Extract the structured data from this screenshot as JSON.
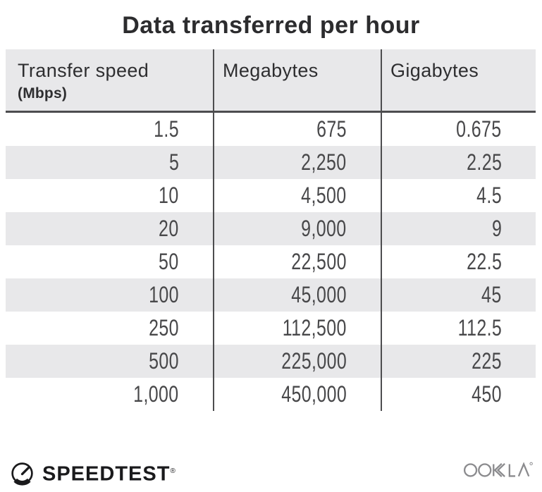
{
  "title": "Data transferred per hour",
  "table": {
    "columns": [
      {
        "label": "Transfer speed",
        "sublabel": "(Mbps)"
      },
      {
        "label": "Megabytes"
      },
      {
        "label": "Gigabytes"
      }
    ],
    "rows": [
      [
        "1.5",
        "675",
        "0.675"
      ],
      [
        "5",
        "2,250",
        "2.25"
      ],
      [
        "10",
        "4,500",
        "4.5"
      ],
      [
        "20",
        "9,000",
        "9"
      ],
      [
        "50",
        "22,500",
        "22.5"
      ],
      [
        "100",
        "45,000",
        "45"
      ],
      [
        "250",
        "112,500",
        "112.5"
      ],
      [
        "500",
        "225,000",
        "225"
      ],
      [
        "1,000",
        "450,000",
        "450"
      ]
    ]
  },
  "chart_data": {
    "type": "table",
    "title": "Data transferred per hour",
    "columns": [
      "Transfer speed (Mbps)",
      "Megabytes",
      "Gigabytes"
    ],
    "rows": [
      [
        1.5,
        675,
        0.675
      ],
      [
        5,
        2250,
        2.25
      ],
      [
        10,
        4500,
        4.5
      ],
      [
        20,
        9000,
        9
      ],
      [
        50,
        22500,
        22.5
      ],
      [
        100,
        45000,
        45
      ],
      [
        250,
        112500,
        112.5
      ],
      [
        500,
        225000,
        225
      ],
      [
        1000,
        450000,
        450
      ]
    ]
  },
  "footer": {
    "speedtest_label": "SPEEDTEST",
    "speedtest_trademark": "®",
    "ookla_label": "OOKLA"
  },
  "colors": {
    "stripe": "#e8e8ea",
    "divider": "#4d4d4f",
    "title_text": "#2c2c2e",
    "number_text": "#48484a",
    "logo_black": "#1a1a1c",
    "ookla_gray": "#8b8b8e"
  }
}
